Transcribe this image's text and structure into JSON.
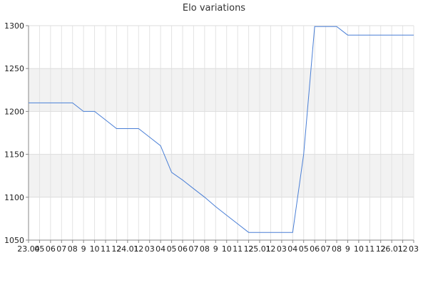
{
  "chart_data": {
    "type": "line",
    "title": "Elo variations",
    "xlabel": "",
    "ylabel": "",
    "ylim": [
      1050,
      1300
    ],
    "yticks": [
      1050,
      1100,
      1150,
      1200,
      1250,
      1300
    ],
    "grid": true,
    "banded_background": true,
    "x_tick_labels": [
      "23.04",
      "05",
      "06",
      "07",
      "08",
      "9",
      "10",
      "11",
      "12",
      "24.01",
      "12",
      "03",
      "04",
      "05",
      "06",
      "07",
      "08",
      "9",
      "10",
      "11",
      "12",
      "25.01",
      "12",
      "03",
      "04",
      "05",
      "06",
      "07",
      "08",
      "9",
      "10",
      "11",
      "12",
      "26.01",
      "12",
      "03"
    ],
    "series": [
      {
        "color": "#4a7fd6",
        "values": [
          1210,
          1210,
          1210,
          1210,
          1210,
          1200,
          1200,
          1190,
          1180,
          1180,
          1180,
          1170,
          1160,
          1129,
          1120,
          1110,
          1100,
          1089,
          1079,
          1069,
          1059,
          1059,
          1059,
          1059,
          1059,
          1150,
          1299,
          1299,
          1299,
          1289,
          1289,
          1289,
          1289,
          1289,
          1289,
          1289
        ]
      }
    ]
  }
}
